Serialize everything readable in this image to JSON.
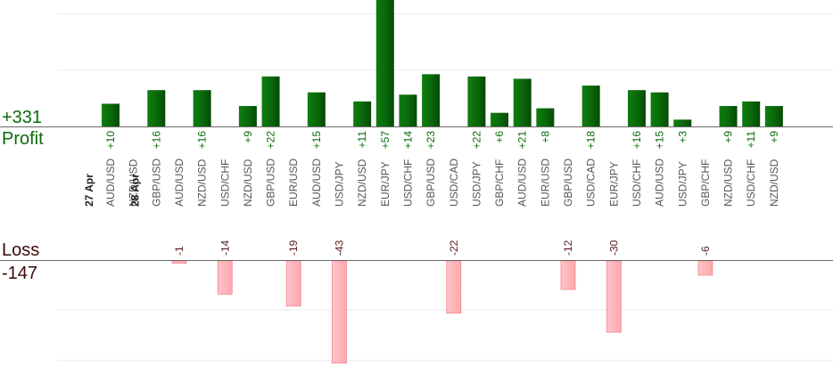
{
  "summary": {
    "profit_total": "+331",
    "profit_label": "Profit",
    "loss_label": "Loss",
    "loss_total": "-147"
  },
  "colors": {
    "profit": "#0a6a0a",
    "profit_text": "#0a6a0a",
    "loss": "#ffb3b8",
    "loss_text": "#5a1a1a",
    "label": "#555555"
  },
  "chart_data": {
    "type": "bar",
    "grid": true,
    "profit_ylim": [
      0,
      57
    ],
    "loss_ylim": [
      0,
      43
    ],
    "categories": [
      {
        "date": "27 Apr",
        "pair": "AUD/USD",
        "profit": 10,
        "loss": null
      },
      {
        "date": null,
        "pair": "NZD/USD",
        "profit": null,
        "loss": null
      },
      {
        "date": "28 Apr",
        "pair": "GBP/USD",
        "profit": 16,
        "loss": null
      },
      {
        "date": null,
        "pair": "AUD/USD",
        "profit": null,
        "loss": -1
      },
      {
        "date": null,
        "pair": "NZD/USD",
        "profit": 16,
        "loss": null
      },
      {
        "date": null,
        "pair": "USD/CHF",
        "profit": null,
        "loss": -14
      },
      {
        "date": null,
        "pair": "NZD/USD",
        "profit": 9,
        "loss": null
      },
      {
        "date": null,
        "pair": "GBP/USD",
        "profit": 22,
        "loss": null
      },
      {
        "date": null,
        "pair": "EUR/USD",
        "profit": null,
        "loss": -19
      },
      {
        "date": null,
        "pair": "AUD/USD",
        "profit": 15,
        "loss": null
      },
      {
        "date": null,
        "pair": "USD/JPY",
        "profit": null,
        "loss": -43
      },
      {
        "date": null,
        "pair": "NZD/USD",
        "profit": 11,
        "loss": null
      },
      {
        "date": null,
        "pair": "EUR/JPY",
        "profit": 57,
        "loss": null
      },
      {
        "date": null,
        "pair": "USD/CHF",
        "profit": 14,
        "loss": null
      },
      {
        "date": null,
        "pair": "GBP/USD",
        "profit": 23,
        "loss": null
      },
      {
        "date": null,
        "pair": "USD/CAD",
        "profit": null,
        "loss": -22
      },
      {
        "date": null,
        "pair": "USD/JPY",
        "profit": 22,
        "loss": null
      },
      {
        "date": null,
        "pair": "GBP/CHF",
        "profit": 6,
        "loss": null
      },
      {
        "date": null,
        "pair": "AUD/USD",
        "profit": 21,
        "loss": null
      },
      {
        "date": null,
        "pair": "EUR/USD",
        "profit": 8,
        "loss": null
      },
      {
        "date": null,
        "pair": "GBP/USD",
        "profit": null,
        "loss": -12
      },
      {
        "date": null,
        "pair": "USD/CAD",
        "profit": 18,
        "loss": null
      },
      {
        "date": null,
        "pair": "EUR/JPY",
        "profit": null,
        "loss": -30
      },
      {
        "date": null,
        "pair": "USD/CHF",
        "profit": 16,
        "loss": null
      },
      {
        "date": null,
        "pair": "AUD/USD",
        "profit": 15,
        "loss": null
      },
      {
        "date": null,
        "pair": "USD/JPY",
        "profit": 3,
        "loss": null
      },
      {
        "date": null,
        "pair": "GBP/CHF",
        "profit": null,
        "loss": -6
      },
      {
        "date": null,
        "pair": "NZD/USD",
        "profit": 9,
        "loss": null
      },
      {
        "date": null,
        "pair": "USD/CHF",
        "profit": 11,
        "loss": null
      },
      {
        "date": null,
        "pair": "NZD/USD",
        "profit": 9,
        "loss": null
      }
    ]
  }
}
